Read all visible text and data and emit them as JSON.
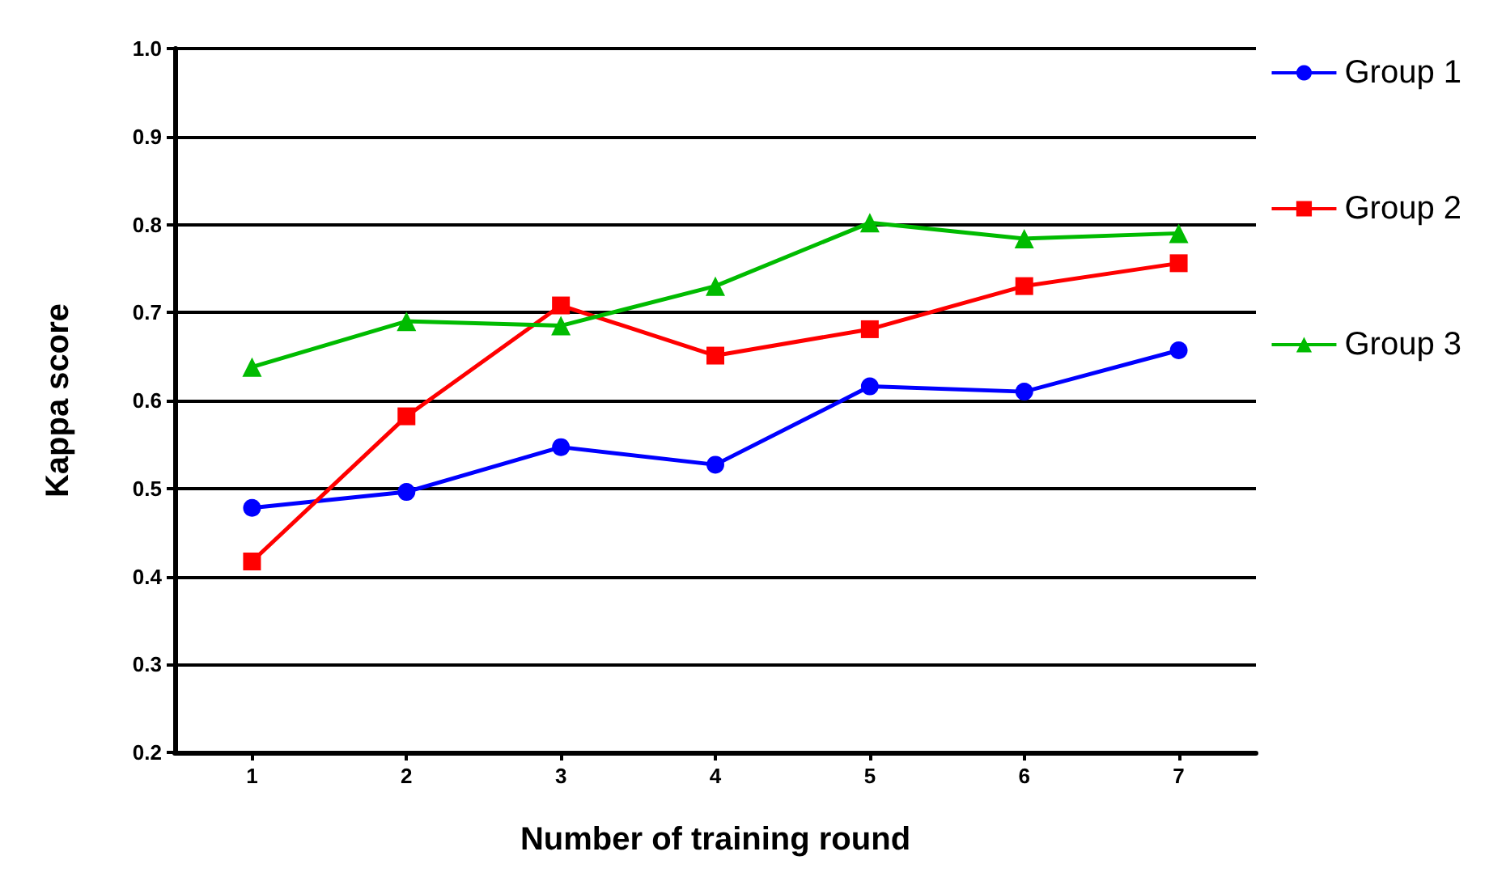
{
  "chart_data": {
    "type": "line",
    "xlabel": "Number of training round",
    "ylabel": "Kappa score",
    "categories": [
      "1",
      "2",
      "3",
      "4",
      "5",
      "6",
      "7"
    ],
    "series": [
      {
        "name": "Group 1",
        "color": "#0000ff",
        "marker": "circle",
        "values": [
          0.478,
          0.496,
          0.547,
          0.527,
          0.616,
          0.61,
          0.657
        ]
      },
      {
        "name": "Group 2",
        "color": "#ff0000",
        "marker": "square",
        "values": [
          0.417,
          0.582,
          0.708,
          0.651,
          0.681,
          0.73,
          0.756
        ]
      },
      {
        "name": "Group 3",
        "color": "#00bb00",
        "marker": "triangle",
        "values": [
          0.638,
          0.69,
          0.685,
          0.73,
          0.802,
          0.784,
          0.79
        ]
      }
    ],
    "ylim": [
      0.2,
      1.0
    ],
    "yticks": [
      0.2,
      0.3,
      0.4,
      0.5,
      0.6,
      0.7,
      0.8,
      0.9,
      {
        "value": 1,
        "label": "1.0"
      }
    ],
    "grid": "y",
    "legend": "top right"
  }
}
